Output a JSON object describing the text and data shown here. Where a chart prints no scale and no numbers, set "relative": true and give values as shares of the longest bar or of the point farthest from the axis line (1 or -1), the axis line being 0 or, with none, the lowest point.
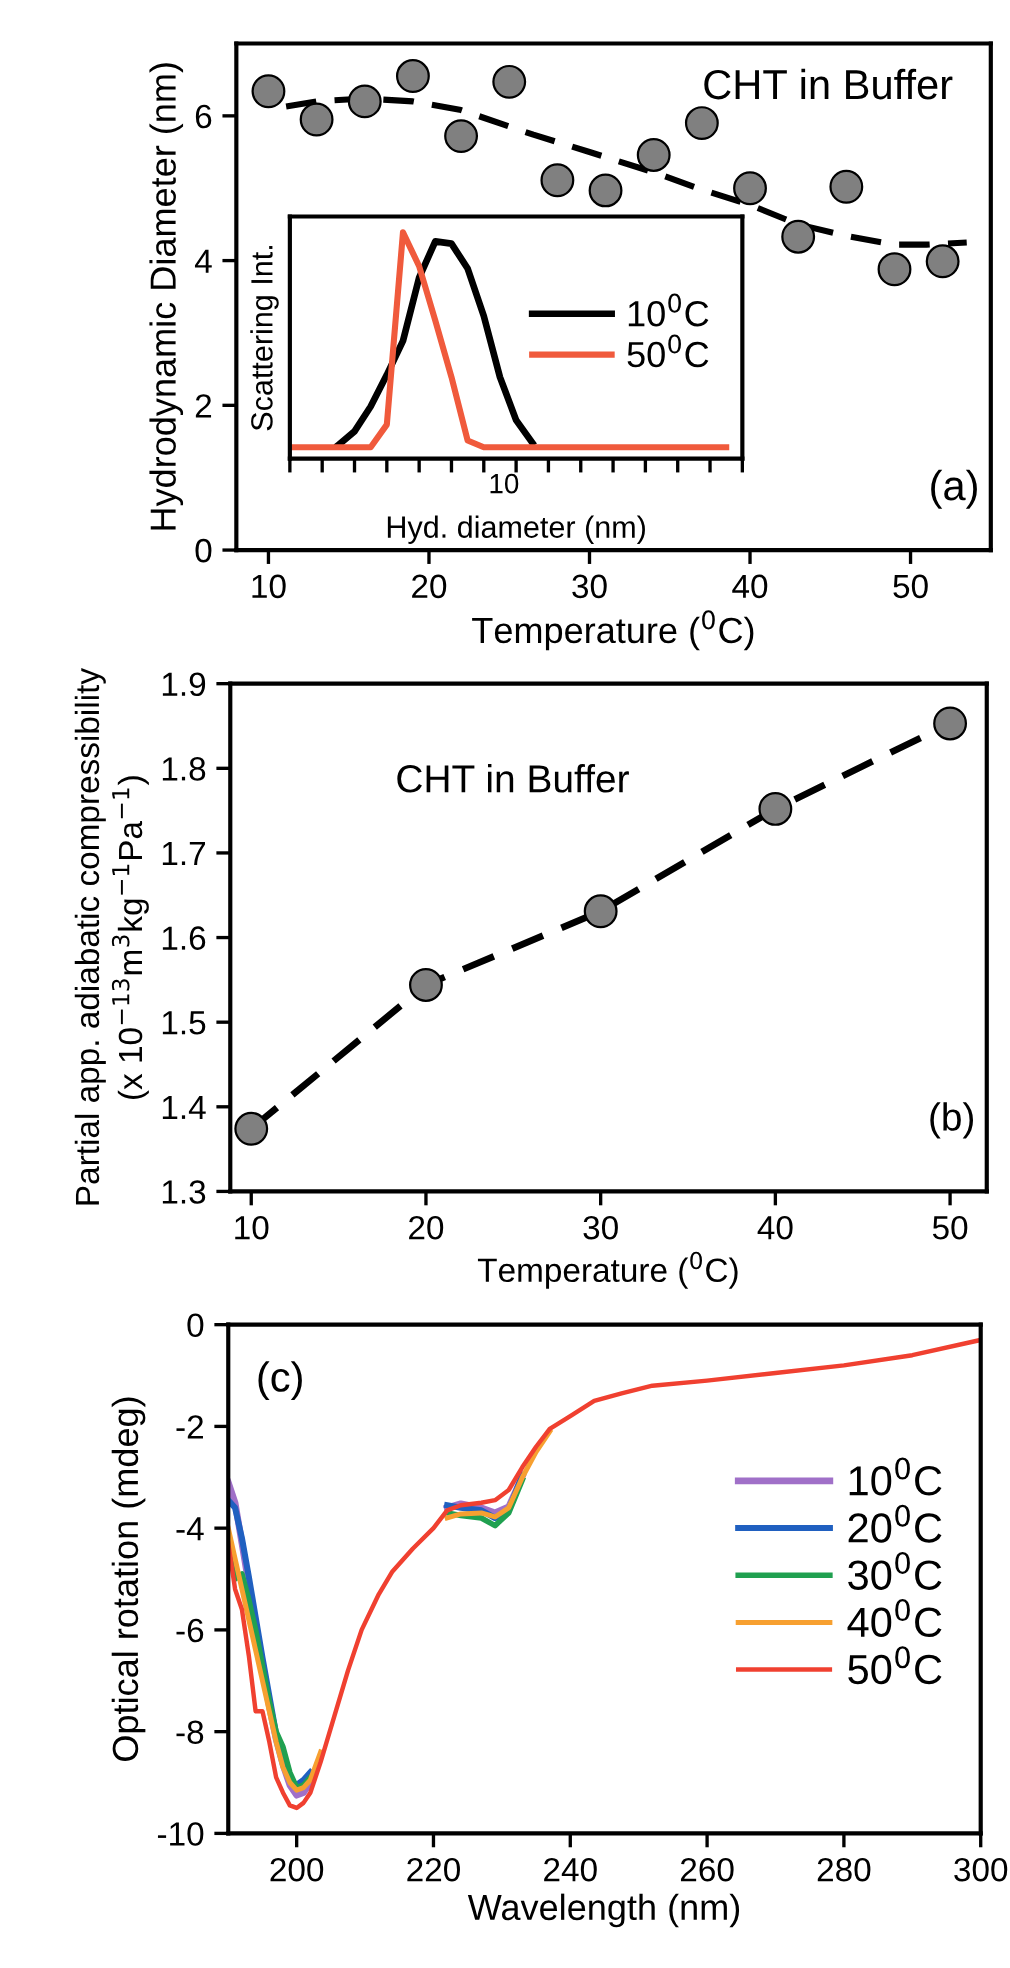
{
  "chart_data": [
    {
      "type": "scatter",
      "xlabel": "Temperature ($^{0}$C)",
      "ylabel": "Hydrodynamic Diameter (nm)",
      "xlim": [
        8,
        55
      ],
      "ylim": [
        0,
        7
      ],
      "xticks": [
        10,
        20,
        30,
        40,
        50
      ],
      "yticks": [
        0,
        2,
        4,
        6
      ],
      "grid": false,
      "legend": false,
      "annotations": [
        "CHT in Buffer",
        "(a)"
      ],
      "series": [
        {
          "type": "scatter",
          "color": "#808080",
          "marker": "circle",
          "x": [
            10,
            13,
            16,
            19,
            22,
            25,
            28,
            31,
            34,
            37,
            40,
            43,
            46,
            49,
            52
          ],
          "values": [
            6.34,
            5.95,
            6.2,
            6.55,
            5.72,
            6.47,
            5.11,
            4.97,
            5.46,
            5.9,
            5.0,
            4.33,
            5.02,
            3.88,
            3.99
          ]
        },
        {
          "type": "line",
          "color": "#000000",
          "marker": "none",
          "line_style": "dashed",
          "x": [
            11.1,
            13,
            16,
            19,
            22,
            26.5,
            30,
            34,
            37,
            40,
            43,
            46,
            49,
            51,
            53.5
          ],
          "values": [
            6.13,
            6.2,
            6.24,
            6.2,
            6.08,
            5.74,
            5.5,
            5.22,
            4.98,
            4.77,
            4.5,
            4.34,
            4.22,
            4.22,
            4.25
          ]
        }
      ]
    },
    {
      "type": "line",
      "xlabel": "Hyd. diameter (nm)",
      "ylabel": "Scattering Int.",
      "relative": true,
      "annotations": [
        "10"
      ],
      "grid": false,
      "legend": "right",
      "marker": "none",
      "line_style": "solid",
      "categories": [
        null,
        null,
        null,
        null,
        null,
        null,
        null,
        null,
        null,
        null,
        null,
        null,
        null,
        null,
        null,
        null,
        null,
        null,
        null,
        null,
        null,
        null,
        null,
        null,
        null,
        null,
        null,
        null,
        null
      ],
      "series": [
        {
          "name": "10$^{0}$C",
          "color": "#000000",
          "values": [
            null,
            null,
            null,
            0.06,
            0.12,
            0.23,
            0.37,
            0.52,
            0.8,
            0.96,
            0.95,
            0.84,
            0.63,
            0.36,
            0.17,
            0.07,
            null,
            null,
            null,
            null,
            null,
            null,
            null,
            null,
            null,
            null,
            null,
            null,
            null
          ]
        },
        {
          "name": "50$^{0}$C",
          "color": "#f05a3c",
          "values": [
            0.05,
            0.05,
            0.05,
            0.05,
            0.05,
            0.05,
            0.15,
            1.0,
            0.85,
            0.61,
            0.36,
            0.08,
            0.05,
            0.05,
            0.05,
            0.05,
            0.05,
            0.05,
            0.05,
            0.05,
            0.05,
            0.05,
            0.05,
            0.05,
            0.05,
            0.05,
            0.05,
            0.05,
            null
          ]
        }
      ]
    },
    {
      "type": "scatter",
      "xlabel": "Temperature ($^{0}$C)",
      "ylabel": "Partial app. adiabatic compressibility\n(x 10$^{−13}$m$^{3}$kg$^{−1}$Pa$^{−1}$)",
      "xlim": [
        8.8,
        52.1
      ],
      "ylim": [
        1.3,
        1.9
      ],
      "xticks": [
        10,
        20,
        30,
        40,
        50
      ],
      "yticks": [
        1.3,
        1.4,
        1.5,
        1.6,
        1.7,
        1.8,
        1.9
      ],
      "grid": false,
      "legend": false,
      "annotations": [
        "CHT in Buffer",
        "(b)"
      ],
      "series": [
        {
          "type": "line",
          "color": "#000000",
          "marker": "none",
          "line_style": "dashed",
          "x": [
            10,
            20,
            30,
            40,
            50
          ],
          "values": [
            1.374,
            1.544,
            1.631,
            1.752,
            1.853
          ]
        },
        {
          "type": "scatter",
          "color": "#808080",
          "marker": "circle",
          "x": [
            10,
            20,
            30,
            40,
            50
          ],
          "values": [
            1.374,
            1.544,
            1.631,
            1.752,
            1.853
          ]
        }
      ]
    },
    {
      "type": "line",
      "xlabel": "Wavelength (nm)",
      "ylabel": "Optical rotation (mdeg)",
      "xlim": [
        190,
        300
      ],
      "ylim": [
        -10,
        0
      ],
      "xticks": [
        200,
        220,
        240,
        260,
        280,
        300
      ],
      "yticks": [
        -10,
        -8,
        -6,
        -4,
        -2,
        0
      ],
      "grid": false,
      "legend": "right",
      "marker": "none",
      "line_style": "solid",
      "annotations": [
        "(c)"
      ],
      "x": [
        190,
        191,
        192,
        193,
        194,
        195,
        196,
        197,
        198,
        199,
        200,
        201,
        202,
        203.5,
        205.5,
        207.5,
        209.5,
        212,
        214,
        217,
        220,
        222,
        224,
        227,
        229,
        231,
        233,
        235,
        237,
        240,
        243.5,
        247.5,
        252,
        260,
        270,
        280,
        290,
        300
      ],
      "series": [
        {
          "name": "10$^{0}$C",
          "color": "#a070c8",
          "values": [
            -3.1,
            -3.5,
            -4.3,
            -5.1,
            -5.9,
            -6.75,
            -7.5,
            -8.15,
            -8.65,
            -9.05,
            -9.25,
            -9.2,
            -9.0,
            null,
            null,
            null,
            null,
            null,
            null,
            null,
            null,
            -3.6,
            -3.52,
            -3.6,
            -3.7,
            -3.58,
            -2.98,
            null,
            null,
            null,
            null,
            null,
            null,
            null,
            null,
            null,
            null,
            null
          ]
        },
        {
          "name": "20$^{0}$C",
          "color": "#2060c0",
          "values": [
            -3.45,
            -3.6,
            -4.2,
            -4.95,
            -5.75,
            -6.55,
            -7.3,
            -8.05,
            -8.55,
            -8.95,
            -9.05,
            -8.95,
            -8.8,
            null,
            null,
            null,
            null,
            null,
            null,
            null,
            null,
            -3.55,
            -3.6,
            -3.65,
            -3.8,
            -3.65,
            -2.95,
            null,
            null,
            null,
            null,
            null,
            null,
            null,
            null,
            null,
            null,
            null
          ]
        },
        {
          "name": "30$^{0}$C",
          "color": "#20a050",
          "values": [
            -4.1,
            -5.0,
            -4.9,
            -5.4,
            -6.0,
            -6.7,
            -7.4,
            -8.0,
            -8.3,
            -8.8,
            -9.1,
            -9.05,
            -8.9,
            null,
            null,
            null,
            null,
            null,
            null,
            null,
            null,
            -3.7,
            -3.75,
            -3.8,
            -3.95,
            -3.7,
            -3.05,
            null,
            null,
            null,
            null,
            null,
            null,
            null,
            null,
            null,
            null,
            null
          ]
        },
        {
          "name": "40$^{0}$C",
          "color": "#f7a030",
          "values": [
            -4.0,
            -4.6,
            -5.2,
            -5.8,
            -6.4,
            -7.0,
            -7.6,
            -8.2,
            -8.7,
            -9.0,
            -9.15,
            -9.1,
            -8.95,
            -8.4,
            null,
            null,
            null,
            null,
            null,
            null,
            null,
            -3.8,
            -3.72,
            -3.7,
            -3.78,
            -3.6,
            -3.0,
            -2.5,
            -2.1,
            null,
            null,
            null,
            null,
            null,
            null,
            null,
            null,
            null
          ]
        },
        {
          "name": "50$^{0}$C",
          "color": "#f04030",
          "values": [
            -4.3,
            -5.2,
            -5.6,
            -6.5,
            -7.6,
            -7.6,
            -8.2,
            -8.9,
            -9.2,
            -9.45,
            -9.5,
            -9.4,
            -9.2,
            -8.6,
            -7.7,
            -6.8,
            -6.0,
            -5.3,
            -4.85,
            -4.4,
            -4.0,
            -3.65,
            -3.55,
            -3.5,
            -3.45,
            -3.25,
            -2.8,
            -2.4,
            -2.05,
            -1.8,
            -1.5,
            -1.35,
            -1.2,
            -1.1,
            -0.95,
            -0.8,
            -0.6,
            -0.3
          ]
        }
      ]
    }
  ]
}
